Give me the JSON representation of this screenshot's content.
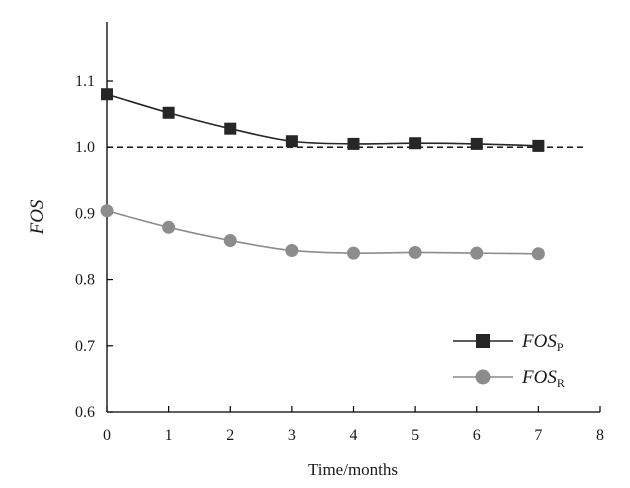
{
  "chart_data": {
    "type": "line",
    "xlabel": "Time/months",
    "ylabel": "FOS",
    "xlim": [
      0,
      8
    ],
    "ylim": [
      0.6,
      1.18
    ],
    "xticks": [
      0,
      1,
      2,
      3,
      4,
      5,
      6,
      7,
      8
    ],
    "yticks": [
      0.6,
      0.7,
      0.8,
      0.9,
      1.0,
      1.1
    ],
    "ytick_labels": [
      "0.6",
      "0.7",
      "0.8",
      "0.9",
      "1.0",
      "1.1"
    ],
    "grid": false,
    "legend_position": "bottom-right",
    "reference_line": {
      "y": 1.0,
      "style": "dashed",
      "color": "#000000",
      "x_range": [
        0,
        8
      ]
    },
    "series": [
      {
        "name": "FOS",
        "name_sub": "P",
        "marker": "square",
        "color": "#262626",
        "x": [
          0,
          1,
          2,
          3,
          4,
          5,
          6,
          7
        ],
        "y": [
          1.08,
          1.052,
          1.028,
          1.009,
          1.005,
          1.006,
          1.005,
          1.002
        ]
      },
      {
        "name": "FOS",
        "name_sub": "R",
        "marker": "circle",
        "color": "#8c8c8c",
        "x": [
          0,
          1,
          2,
          3,
          4,
          5,
          6,
          7
        ],
        "y": [
          0.904,
          0.879,
          0.859,
          0.844,
          0.84,
          0.841,
          0.84,
          0.839
        ]
      }
    ]
  }
}
